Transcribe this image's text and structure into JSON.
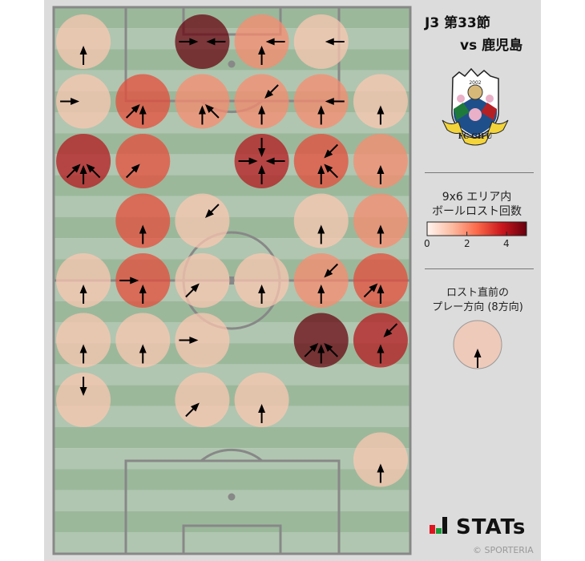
{
  "header": {
    "round": "J3 第33節",
    "opponent": "vs 鹿児島"
  },
  "logo": {
    "text": "FC GIFU",
    "year": "2002"
  },
  "colorbar": {
    "title_line1": "9x6 エリア内",
    "title_line2": "ボールロスト回数",
    "ticks": [
      "0",
      "2",
      "4"
    ],
    "min": 0,
    "max": 5,
    "colormap": [
      "#fff5f0",
      "#fcbba1",
      "#fb6a4a",
      "#cb181d",
      "#67000d"
    ]
  },
  "direction_legend": {
    "title_line1": "ロスト直前の",
    "title_line2": "プレー方向 (8方向)",
    "example_direction": "N"
  },
  "brand": {
    "name": "STATs",
    "copyright": "© SPORTERIA"
  },
  "chart_data": {
    "type": "heatmap",
    "grid": {
      "rows": 9,
      "cols": 6
    },
    "attack_direction": "up",
    "cells": [
      {
        "row": 0,
        "col": 0,
        "count": 1,
        "directions": [
          "N"
        ]
      },
      {
        "row": 0,
        "col": 2,
        "count": 5,
        "directions": [
          "E",
          "W"
        ]
      },
      {
        "row": 0,
        "col": 3,
        "count": 2,
        "directions": [
          "N",
          "W"
        ]
      },
      {
        "row": 0,
        "col": 4,
        "count": 1,
        "directions": [
          "W"
        ]
      },
      {
        "row": 1,
        "col": 0,
        "count": 1,
        "directions": [
          "E"
        ]
      },
      {
        "row": 1,
        "col": 1,
        "count": 3,
        "directions": [
          "NE",
          "N"
        ]
      },
      {
        "row": 1,
        "col": 2,
        "count": 2,
        "directions": [
          "N",
          "NW"
        ]
      },
      {
        "row": 1,
        "col": 3,
        "count": 2,
        "directions": [
          "SW",
          "N"
        ]
      },
      {
        "row": 1,
        "col": 4,
        "count": 2,
        "directions": [
          "N",
          "W"
        ]
      },
      {
        "row": 1,
        "col": 5,
        "count": 1,
        "directions": [
          "N"
        ]
      },
      {
        "row": 2,
        "col": 0,
        "count": 4,
        "directions": [
          "NE",
          "N",
          "NW"
        ]
      },
      {
        "row": 2,
        "col": 1,
        "count": 3,
        "directions": [
          "NE"
        ]
      },
      {
        "row": 2,
        "col": 3,
        "count": 4,
        "directions": [
          "S",
          "E",
          "W",
          "N"
        ]
      },
      {
        "row": 2,
        "col": 4,
        "count": 3,
        "directions": [
          "SW",
          "N",
          "NW"
        ]
      },
      {
        "row": 2,
        "col": 5,
        "count": 2,
        "directions": [
          "N"
        ]
      },
      {
        "row": 3,
        "col": 1,
        "count": 3,
        "directions": [
          "N"
        ]
      },
      {
        "row": 3,
        "col": 2,
        "count": 1,
        "directions": [
          "SW"
        ]
      },
      {
        "row": 3,
        "col": 4,
        "count": 1,
        "directions": [
          "N"
        ]
      },
      {
        "row": 3,
        "col": 5,
        "count": 2,
        "directions": [
          "N"
        ]
      },
      {
        "row": 4,
        "col": 0,
        "count": 1,
        "directions": [
          "N"
        ]
      },
      {
        "row": 4,
        "col": 1,
        "count": 3,
        "directions": [
          "E",
          "N"
        ]
      },
      {
        "row": 4,
        "col": 2,
        "count": 1,
        "directions": [
          "NE"
        ]
      },
      {
        "row": 4,
        "col": 3,
        "count": 1,
        "directions": [
          "N"
        ]
      },
      {
        "row": 4,
        "col": 4,
        "count": 2,
        "directions": [
          "SW",
          "N"
        ]
      },
      {
        "row": 4,
        "col": 5,
        "count": 3,
        "directions": [
          "NE",
          "N"
        ]
      },
      {
        "row": 5,
        "col": 0,
        "count": 1,
        "directions": [
          "N"
        ]
      },
      {
        "row": 5,
        "col": 1,
        "count": 1,
        "directions": [
          "N"
        ]
      },
      {
        "row": 5,
        "col": 2,
        "count": 1,
        "directions": [
          "E"
        ]
      },
      {
        "row": 5,
        "col": 4,
        "count": 5,
        "directions": [
          "NE",
          "N",
          "NW"
        ]
      },
      {
        "row": 5,
        "col": 5,
        "count": 4,
        "directions": [
          "SW",
          "N"
        ]
      },
      {
        "row": 6,
        "col": 0,
        "count": 1,
        "directions": [
          "S"
        ]
      },
      {
        "row": 6,
        "col": 2,
        "count": 1,
        "directions": [
          "NE"
        ]
      },
      {
        "row": 6,
        "col": 3,
        "count": 1,
        "directions": [
          "N"
        ]
      },
      {
        "row": 7,
        "col": 5,
        "count": 1,
        "directions": [
          "N"
        ]
      }
    ],
    "pitch_colors": {
      "stripe_dark": "#9bb89b",
      "stripe_light": "#b0c6b0",
      "lines": "#888888"
    }
  }
}
